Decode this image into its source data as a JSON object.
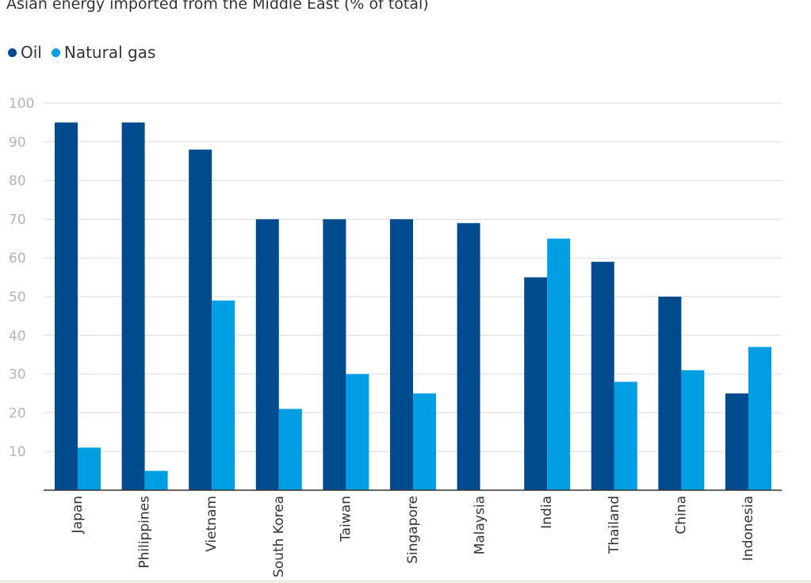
{
  "chart_data": {
    "type": "bar",
    "title": "Asian energy imported from the Middle East (% of total)",
    "categories": [
      "Japan",
      "Philippines",
      "Vietnam",
      "South Korea",
      "Taiwan",
      "Singapore",
      "Malaysia",
      "India",
      "Thailand",
      "China",
      "Indonesia"
    ],
    "series": [
      {
        "name": "Oil",
        "color": "#004b8d",
        "values": [
          95,
          95,
          88,
          70,
          70,
          70,
          69,
          55,
          59,
          50,
          25
        ]
      },
      {
        "name": "Natural gas",
        "color": "#009fe3",
        "values": [
          11,
          5,
          49,
          21,
          30,
          25,
          0,
          65,
          28,
          31,
          37
        ]
      }
    ],
    "yticks": [
      "100",
      "90",
      "80",
      "70",
      "60",
      "50",
      "40",
      "30",
      "20",
      "10"
    ],
    "ylim": [
      0,
      100
    ],
    "grid": true,
    "legend_position": "top-left",
    "xlabel": "",
    "ylabel": ""
  }
}
